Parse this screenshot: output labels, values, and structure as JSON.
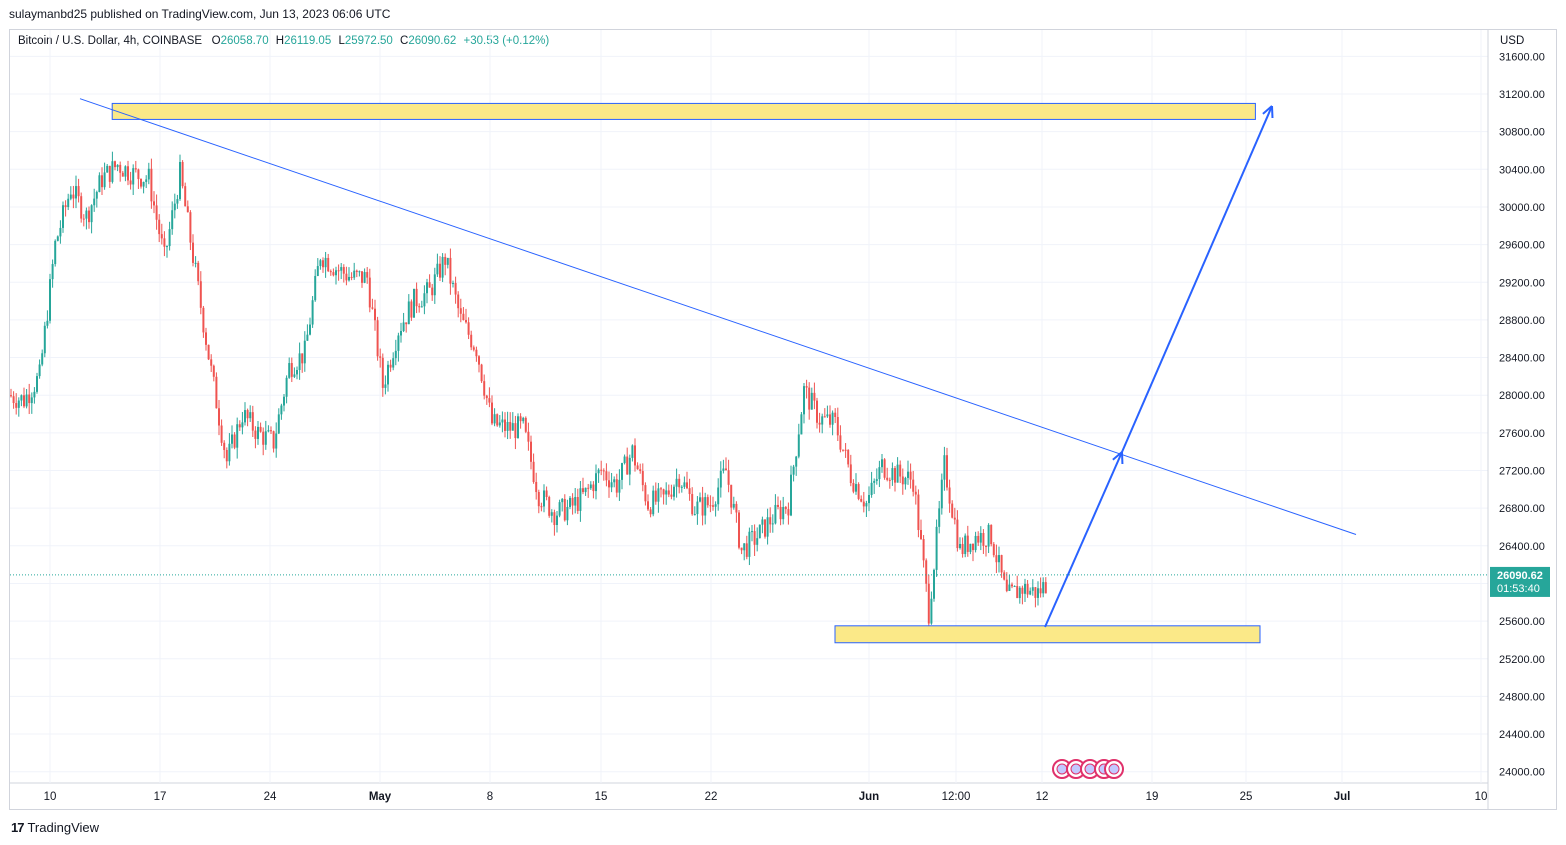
{
  "header": {
    "published": "sulaymanbd25 published on TradingView.com, Jun 13, 2023 06:06 UTC"
  },
  "legend": {
    "symbol": "Bitcoin / U.S. Dollar, 4h, COINBASE",
    "o_label": "O",
    "o_value": "26058.70",
    "h_label": "H",
    "h_value": "26119.05",
    "l_label": "L",
    "l_value": "25972.50",
    "c_label": "C",
    "c_value": "26090.62",
    "change": "+30.53 (+0.12%)"
  },
  "currency": "USD",
  "brand": {
    "name": "TradingView",
    "logo": "17"
  },
  "price_tag": {
    "price": "26090.62",
    "countdown": "01:53:40"
  },
  "colors": {
    "up": "#26a69a",
    "down": "#ef5350",
    "trendline": "#2962ff",
    "zone_fill": "#fbe988",
    "zone_border": "#2962ff",
    "grid": "#f0f3fa"
  },
  "chart_data": {
    "type": "candlestick",
    "symbol": "BTCUSD",
    "interval": "4h",
    "ylim": [
      23880,
      31880
    ],
    "y_ticks": [
      24000,
      24400,
      24800,
      25200,
      25600,
      26000,
      26400,
      26800,
      27200,
      27600,
      28000,
      28400,
      28800,
      29200,
      29600,
      30000,
      30400,
      30800,
      31200,
      31600
    ],
    "y_tick_labels": [
      "24000.00",
      "24400.00",
      "24800.00",
      "25200.00",
      "25600.00",
      "26000.00",
      "26400.00",
      "26800.00",
      "27200.00",
      "27600.00",
      "28000.00",
      "28400.00",
      "28800.00",
      "29200.00",
      "29600.00",
      "30000.00",
      "30400.00",
      "30800.00",
      "31200.00",
      "31600.00"
    ],
    "x_ticks": [
      "10",
      "17",
      "24",
      "May",
      "8",
      "15",
      "22",
      "Jun",
      "12:00",
      "12",
      "19",
      "25",
      "Jul",
      "10"
    ],
    "approx_closes": [
      [
        "Apr 07",
        28000
      ],
      [
        "Apr 08",
        27950
      ],
      [
        "Apr 09",
        28200
      ],
      [
        "Apr 10",
        29600
      ],
      [
        "Apr 11",
        30200
      ],
      [
        "Apr 12",
        29900
      ],
      [
        "Apr 13",
        30300
      ],
      [
        "Apr 14",
        30450
      ],
      [
        "Apr 15",
        30350
      ],
      [
        "Apr 16",
        30300
      ],
      [
        "Apr 17",
        29450
      ],
      [
        "Apr 18",
        30350
      ],
      [
        "Apr 19",
        29300
      ],
      [
        "Apr 20",
        28250
      ],
      [
        "Apr 21",
        27300
      ],
      [
        "Apr 22",
        27800
      ],
      [
        "Apr 23",
        27600
      ],
      [
        "Apr 24",
        27500
      ],
      [
        "Apr 25",
        28300
      ],
      [
        "Apr 26",
        28450
      ],
      [
        "Apr 27",
        29500
      ],
      [
        "Apr 28",
        29350
      ],
      [
        "Apr 29",
        29250
      ],
      [
        "Apr 30",
        29250
      ],
      [
        "May 01",
        28100
      ],
      [
        "May 02",
        28700
      ],
      [
        "May 03",
        29000
      ],
      [
        "May 04",
        29100
      ],
      [
        "May 05",
        29450
      ],
      [
        "May 06",
        28800
      ],
      [
        "May 07",
        28500
      ],
      [
        "May 08",
        27700
      ],
      [
        "May 09",
        27650
      ],
      [
        "May 10",
        27650
      ],
      [
        "May 11",
        26950
      ],
      [
        "May 12",
        26750
      ],
      [
        "May 13",
        26800
      ],
      [
        "May 14",
        26950
      ],
      [
        "May 15",
        27200
      ],
      [
        "May 16",
        27050
      ],
      [
        "May 17",
        27400
      ],
      [
        "May 18",
        26850
      ],
      [
        "May 19",
        26900
      ],
      [
        "May 20",
        27150
      ],
      [
        "May 21",
        26800
      ],
      [
        "May 22",
        26850
      ],
      [
        "May 23",
        27200
      ],
      [
        "May 24",
        26350
      ],
      [
        "May 25",
        26500
      ],
      [
        "May 26",
        26700
      ],
      [
        "May 27",
        26850
      ],
      [
        "May 28",
        28050
      ],
      [
        "May 29",
        27750
      ],
      [
        "May 30",
        27700
      ],
      [
        "May 31",
        27150
      ],
      [
        "Jun 01",
        26850
      ],
      [
        "Jun 02",
        27250
      ],
      [
        "Jun 03",
        27150
      ],
      [
        "Jun 04",
        27100
      ],
      [
        "Jun 05",
        25700
      ],
      [
        "Jun 06",
        27250
      ],
      [
        "Jun 07",
        26350
      ],
      [
        "Jun 08",
        26500
      ],
      [
        "Jun 09",
        26500
      ],
      [
        "Jun 10",
        25850
      ],
      [
        "Jun 11",
        25950
      ],
      [
        "Jun 12",
        25900
      ],
      [
        "Jun 13",
        26090
      ]
    ],
    "annotations": {
      "upper_zone": [
        30930,
        31100
      ],
      "lower_zone": [
        25370,
        25550
      ],
      "descending_trendline": [
        [
          "Apr 11",
          31150
        ],
        [
          "Jul 01",
          26520
        ]
      ],
      "projection_arrows": [
        [
          [
            "Jun 13",
            25550
          ],
          [
            "Jun 17",
            27400
          ]
        ],
        [
          [
            "Jun 17",
            27400
          ],
          [
            "Jun 26",
            31150
          ]
        ]
      ]
    }
  }
}
